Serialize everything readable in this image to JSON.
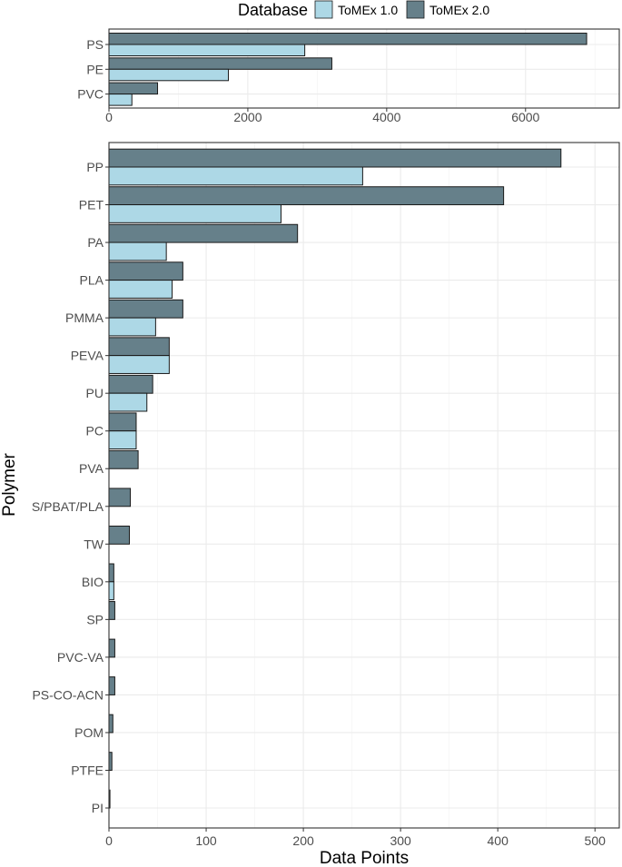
{
  "chart_data": {
    "type": "bar",
    "orientation": "horizontal",
    "xlabel": "Data Points",
    "ylabel": "Polymer",
    "legend": {
      "title": "Database",
      "position": "top",
      "entries": [
        "ToMEx 1.0",
        "ToMEx 2.0"
      ]
    },
    "colors": {
      "ToMEx 1.0": "#add8e6",
      "ToMEx 2.0": "#66808a",
      "bar_outline": "#1a1a1a",
      "grid": "#ebebeb",
      "panel_border": "#333333"
    },
    "grid": true,
    "panels": [
      {
        "categories": [
          "PS",
          "PE",
          "PVC"
        ],
        "series": [
          {
            "name": "ToMEx 1.0",
            "values": [
              2820,
              1720,
              330
            ]
          },
          {
            "name": "ToMEx 2.0",
            "values": [
              6880,
              3210,
              700
            ]
          }
        ],
        "xlim": [
          0,
          7350
        ],
        "xticks": [
          0,
          2000,
          4000,
          6000
        ]
      },
      {
        "categories": [
          "PP",
          "PET",
          "PA",
          "PLA",
          "PMMA",
          "PEVA",
          "PU",
          "PC",
          "PVA",
          "S/PBAT/PLA",
          "TW",
          "BIO",
          "SP",
          "PVC-VA",
          "PS-CO-ACN",
          "POM",
          "PTFE",
          "PI"
        ],
        "series": [
          {
            "name": "ToMEx 1.0",
            "values": [
              261,
              177,
              59,
              65,
              48,
              62,
              39,
              28,
              0,
              0,
              0,
              5,
              0,
              0,
              0,
              0,
              0,
              0
            ]
          },
          {
            "name": "ToMEx 2.0",
            "values": [
              465,
              406,
              194,
              76,
              76,
              62,
              45,
              28,
              30,
              22,
              21,
              5,
              6,
              6,
              6,
              4,
              3,
              1
            ]
          }
        ],
        "xlim": [
          0,
          525
        ],
        "xticks": [
          0,
          100,
          200,
          300,
          400,
          500
        ]
      }
    ]
  }
}
